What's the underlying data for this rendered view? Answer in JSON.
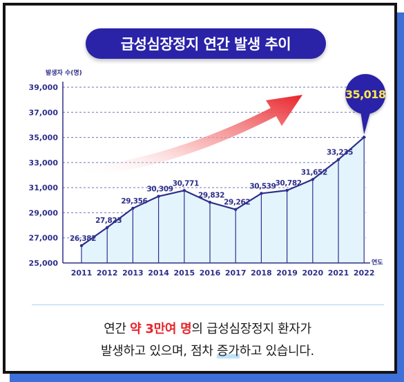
{
  "title": "급성심장정지 연간 발생 추이",
  "chart_data": {
    "type": "area",
    "title": "급성심장정지 연간 발생 추이",
    "ylabel": "발생자 수(명)",
    "xlabel": "연도",
    "categories": [
      "2011",
      "2012",
      "2013",
      "2014",
      "2015",
      "2016",
      "2017",
      "2018",
      "2019",
      "2020",
      "2021",
      "2022"
    ],
    "values": [
      26382,
      27823,
      29356,
      30309,
      30771,
      29832,
      29262,
      30539,
      30782,
      31652,
      33235,
      35018
    ],
    "value_labels": [
      "26,382",
      "27,823",
      "29,356",
      "30,309",
      "30,771",
      "29,832",
      "29,262",
      "30,539",
      "30,782",
      "31,652",
      "33,235",
      "35,018"
    ],
    "ylim": [
      25000,
      39000
    ],
    "yticks": [
      25000,
      27000,
      29000,
      31000,
      33000,
      35000,
      37000,
      39000
    ],
    "ytick_labels": [
      "25,000",
      "27,000",
      "29,000",
      "31,000",
      "33,000",
      "35,000",
      "37,000",
      "39,000"
    ],
    "grid": true,
    "highlight": {
      "category": "2022",
      "label": "35,018"
    },
    "colors": {
      "line": "#2d2f8a",
      "fill": "#e4f4fd",
      "grid": "#6f72b8",
      "highlight_bubble": "#2a23a8",
      "highlight_text": "#ffe94a",
      "trend_arrow": "#e8232b"
    }
  },
  "caption": {
    "line1_pre": "연간 ",
    "line1_highlight": "약 3만여 명",
    "line1_post": "의 급성심장정지 환자가",
    "line2_pre": "발생하고 있으며, 점차 ",
    "line2_underlined": "증가",
    "line2_post": "하고 있습니다."
  }
}
